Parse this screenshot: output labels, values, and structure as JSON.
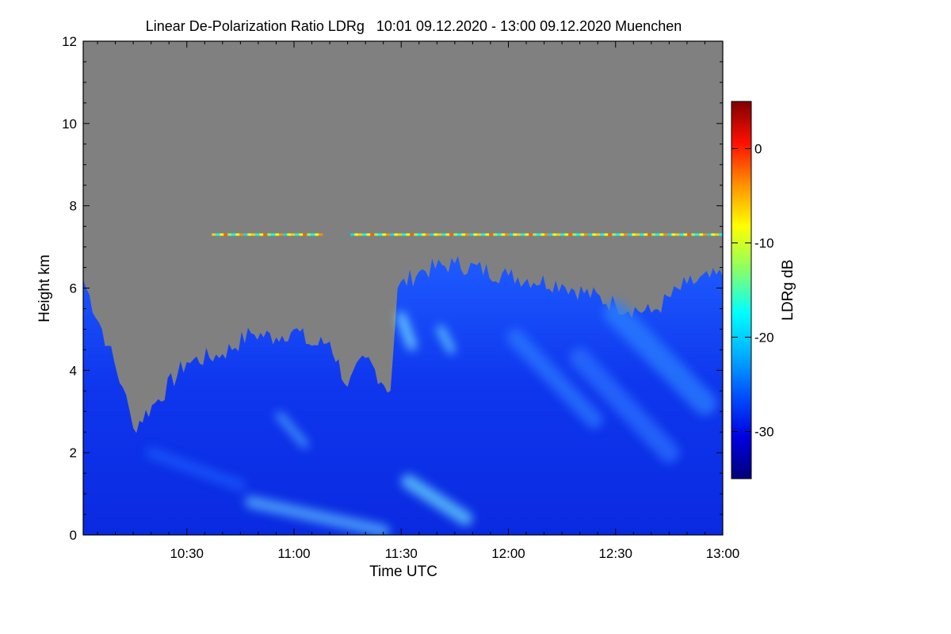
{
  "chart_data": {
    "type": "heatmap",
    "title": "Linear De-Polarization Ratio LDRg   10:01 09.12.2020 - 13:00 09.12.2020 Muenchen",
    "xlabel": "Time UTC",
    "ylabel": "Height km",
    "xlim": [
      "10:01",
      "13:00"
    ],
    "ylim": [
      0,
      12
    ],
    "x_ticks": [
      "10:30",
      "11:00",
      "11:30",
      "12:00",
      "12:30",
      "13:00"
    ],
    "y_ticks": [
      "0",
      "2",
      "4",
      "6",
      "8",
      "10",
      "12"
    ],
    "colorbar": {
      "label": "LDRg dB",
      "range": [
        -35,
        5
      ],
      "ticks": [
        "0",
        "-10",
        "-20",
        "-30"
      ],
      "stops": [
        "#00007a",
        "#0000e0",
        "#0050ff",
        "#00b0ff",
        "#00ffff",
        "#90ff60",
        "#ffff00",
        "#ff9000",
        "#ff1000",
        "#800000"
      ]
    },
    "no_data_color": "#808080",
    "features": {
      "cloud_top_km": [
        {
          "time": "10:01",
          "top": 6.2
        },
        {
          "time": "10:08",
          "top": 4.6
        },
        {
          "time": "10:12",
          "top": 3.6
        },
        {
          "time": "10:15",
          "top": 2.6
        },
        {
          "time": "10:22",
          "top": 3.3
        },
        {
          "time": "10:30",
          "top": 4.2
        },
        {
          "time": "10:40",
          "top": 4.4
        },
        {
          "time": "10:48",
          "top": 4.9
        },
        {
          "time": "10:55",
          "top": 4.8
        },
        {
          "time": "11:00",
          "top": 5.0
        },
        {
          "time": "11:05",
          "top": 4.6
        },
        {
          "time": "11:10",
          "top": 4.7
        },
        {
          "time": "11:15",
          "top": 3.6
        },
        {
          "time": "11:20",
          "top": 4.3
        },
        {
          "time": "11:27",
          "top": 3.5
        },
        {
          "time": "11:29",
          "top": 6.0
        },
        {
          "time": "11:35",
          "top": 6.4
        },
        {
          "time": "11:45",
          "top": 6.6
        },
        {
          "time": "12:00",
          "top": 6.3
        },
        {
          "time": "12:15",
          "top": 6.1
        },
        {
          "time": "12:30",
          "top": 5.6
        },
        {
          "time": "12:40",
          "top": 5.4
        },
        {
          "time": "12:50",
          "top": 6.1
        },
        {
          "time": "13:00",
          "top": 6.3
        }
      ],
      "thin_layer": {
        "height_km": 7.3,
        "start": "10:37",
        "end": "13:00",
        "gap": [
          "11:07",
          "11:15"
        ]
      }
    }
  }
}
